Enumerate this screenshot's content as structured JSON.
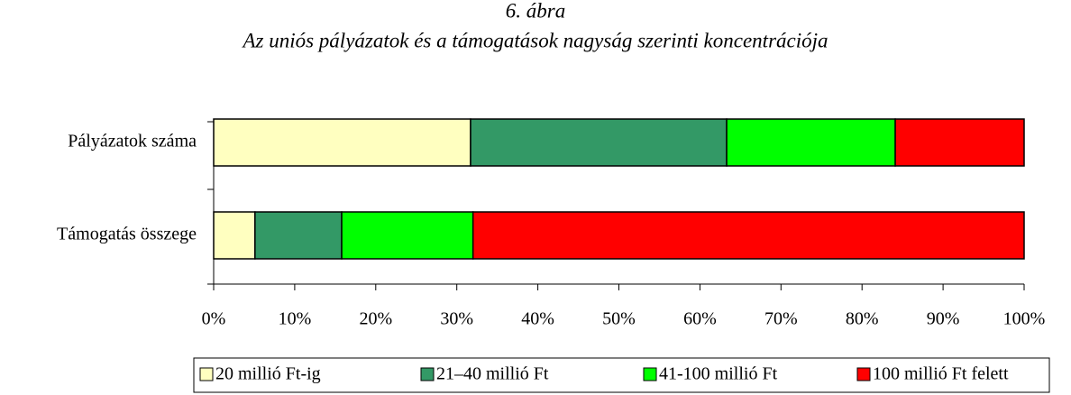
{
  "chart_data": {
    "type": "stacked_bar_horizontal",
    "title": "6. ábra",
    "subtitle": "Az uniós pályázatok és a támogatások nagyság szerinti koncentrációja",
    "categories": [
      "Pályázatok száma",
      "Támogatás összege"
    ],
    "series": [
      {
        "name": "20 millió Ft-ig",
        "color": "#ffffc0",
        "values": [
          31.7,
          5.1
        ]
      },
      {
        "name": "21–40 millió Ft",
        "color": "#339966",
        "values": [
          31.6,
          10.7
        ]
      },
      {
        "name": "41-100 millió Ft",
        "color": "#00ff00",
        "values": [
          20.8,
          16.2
        ]
      },
      {
        "name": "100 millió Ft felett",
        "color": "#ff0000",
        "values": [
          15.9,
          68.0
        ]
      }
    ],
    "xlim": [
      0,
      100
    ],
    "xticks": [
      {
        "value": 0,
        "label": "0%"
      },
      {
        "value": 10,
        "label": "10%"
      },
      {
        "value": 20,
        "label": "20%"
      },
      {
        "value": 30,
        "label": "30%"
      },
      {
        "value": 40,
        "label": "40%"
      },
      {
        "value": 50,
        "label": "50%"
      },
      {
        "value": 60,
        "label": "60%"
      },
      {
        "value": 70,
        "label": "70%"
      },
      {
        "value": 80,
        "label": "80%"
      },
      {
        "value": 90,
        "label": "90%"
      },
      {
        "value": 100,
        "label": "100%"
      }
    ],
    "legend": "bottom"
  }
}
